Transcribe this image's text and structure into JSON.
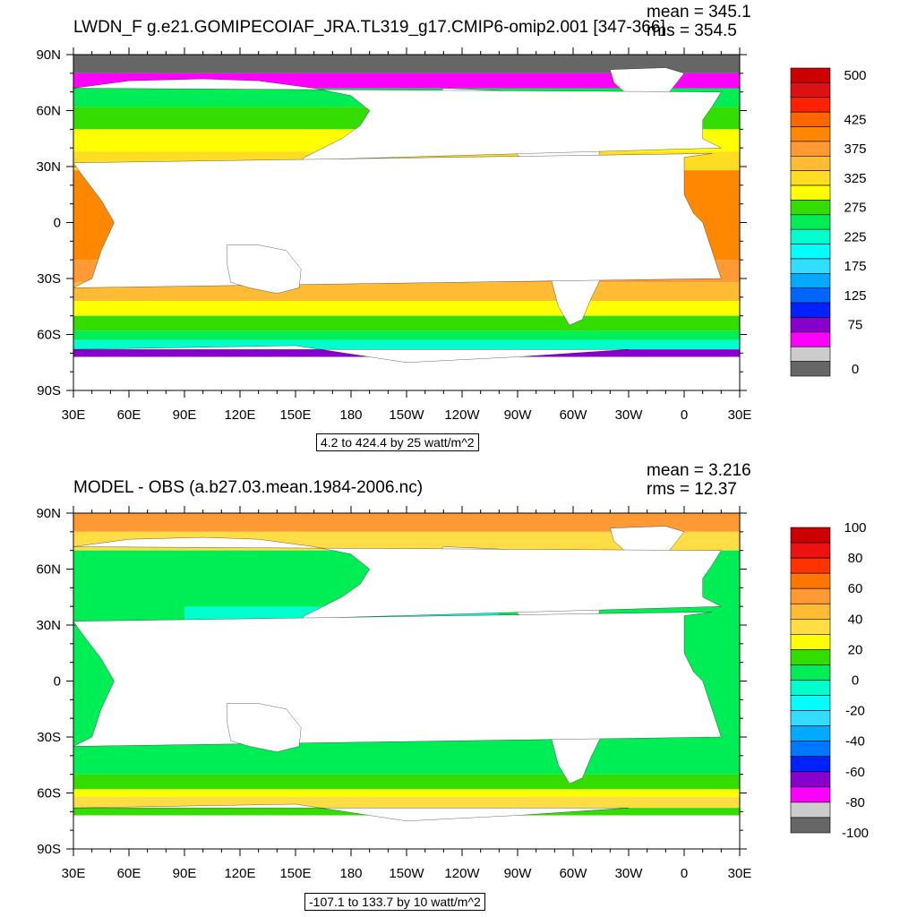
{
  "panels": [
    {
      "title": "LWDN_F g.e21.GOMIPECOIAF_JRA.TL319_g17.CMIP6-omip2.001 [347-366]",
      "mean_text": "mean = 345.1",
      "rms_text": "rms = 354.5",
      "range_text": "4.2 to 424.4 by 25 watt/m^2",
      "colorbar": {
        "colors": [
          "#cc0000",
          "#dd1111",
          "#ff2200",
          "#ff6600",
          "#ff8800",
          "#ff9933",
          "#ffbb33",
          "#ffdd22",
          "#ffff00",
          "#33dd00",
          "#00ee55",
          "#00ffcc",
          "#00ffff",
          "#33ddff",
          "#00aaff",
          "#0066ff",
          "#0022ff",
          "#8800cc",
          "#ff00ff",
          "#cccccc",
          "#666666"
        ],
        "labels": [
          {
            "text": "500",
            "index": 0
          },
          {
            "text": "425",
            "index": 3
          },
          {
            "text": "375",
            "index": 5
          },
          {
            "text": "325",
            "index": 7
          },
          {
            "text": "275",
            "index": 9
          },
          {
            "text": "225",
            "index": 11
          },
          {
            "text": "175",
            "index": 13
          },
          {
            "text": "125",
            "index": 15
          },
          {
            "text": "75",
            "index": 17
          },
          {
            "text": "0",
            "index": 20
          }
        ]
      }
    },
    {
      "title": "MODEL - OBS (a.b27.03.mean.1984-2006.nc)",
      "mean_text": "mean = 3.216",
      "rms_text": "rms = 12.37",
      "range_text": "-107.1 to 133.7 by 10 watt/m^2",
      "colorbar": {
        "colors": [
          "#cc0000",
          "#ee1111",
          "#ff3300",
          "#ff7700",
          "#ff9933",
          "#ffbb33",
          "#ffdd44",
          "#ffff00",
          "#33dd00",
          "#00ee55",
          "#00ffcc",
          "#00ffff",
          "#33ddff",
          "#00aaff",
          "#0077ff",
          "#0022ff",
          "#8800cc",
          "#ff00ff",
          "#cccccc",
          "#666666"
        ],
        "labels": [
          {
            "text": "100",
            "index": 0
          },
          {
            "text": "80",
            "index": 2
          },
          {
            "text": "60",
            "index": 4
          },
          {
            "text": "40",
            "index": 6
          },
          {
            "text": "20",
            "index": 8
          },
          {
            "text": "0",
            "index": 10
          },
          {
            "text": "-20",
            "index": 12
          },
          {
            "text": "-40",
            "index": 14
          },
          {
            "text": "-60",
            "index": 16
          },
          {
            "text": "-80",
            "index": 18
          },
          {
            "text": "-100",
            "index": 20
          }
        ]
      }
    }
  ],
  "axes": {
    "lat_labels": [
      "90N",
      "60N",
      "30N",
      "0",
      "30S",
      "60S",
      "90S"
    ],
    "lon_labels": [
      "30E",
      "60E",
      "90E",
      "120E",
      "150E",
      "180",
      "150W",
      "120W",
      "90W",
      "60W",
      "30W",
      "0",
      "30E"
    ]
  }
}
